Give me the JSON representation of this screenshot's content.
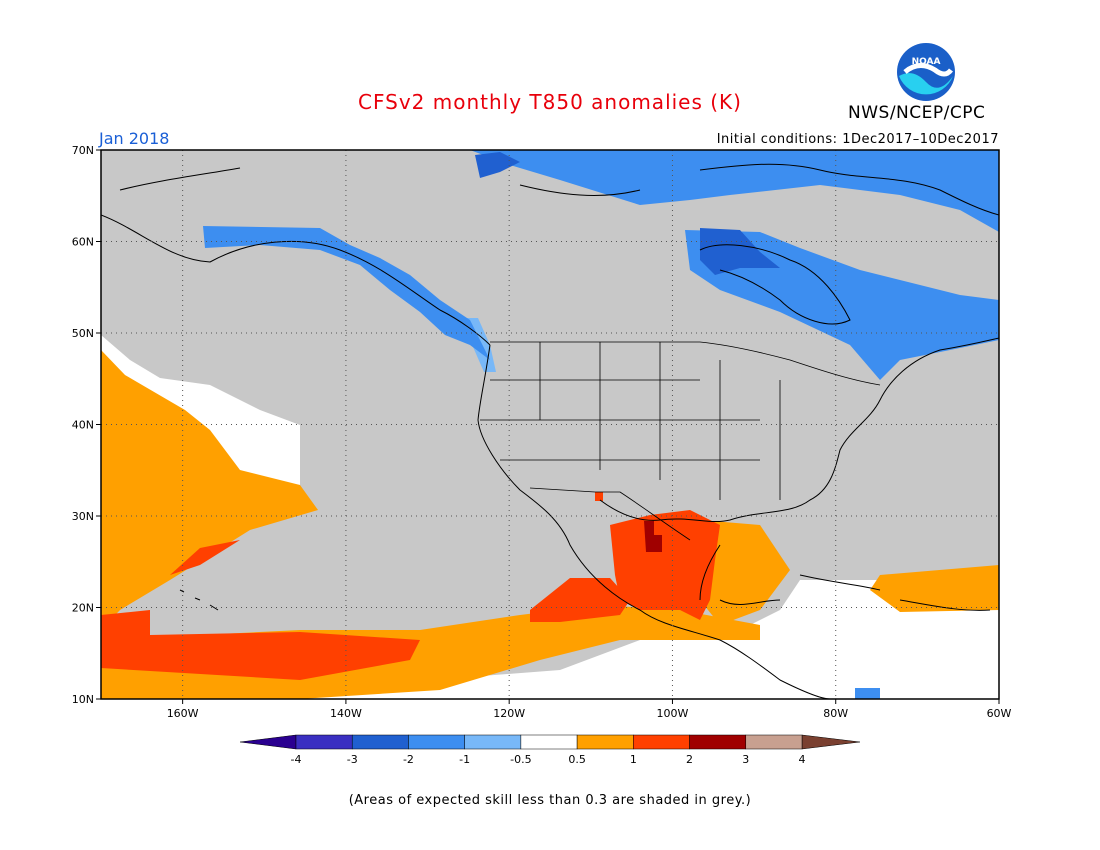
{
  "title": "CFSv2 monthly T850 anomalies (K)",
  "agency": "NWS/NCEP/CPC",
  "logo_text": "NOAA",
  "valid_month": "Jan 2018",
  "initial_conditions": "Initial conditions: 1Dec2017–10Dec2017",
  "footnote": "(Areas of expected skill less than 0.3 are shaded in grey.)",
  "map": {
    "lon_range": [
      -170,
      -60
    ],
    "lat_range": [
      10,
      70
    ],
    "lat_ticks": [
      {
        "lat": 70,
        "label": "70N"
      },
      {
        "lat": 60,
        "label": "60N"
      },
      {
        "lat": 50,
        "label": "50N"
      },
      {
        "lat": 40,
        "label": "40N"
      },
      {
        "lat": 30,
        "label": "30N"
      },
      {
        "lat": 20,
        "label": "20N"
      },
      {
        "lat": 10,
        "label": "10N"
      }
    ],
    "lon_ticks": [
      {
        "lon": -160,
        "label": "160W"
      },
      {
        "lon": -140,
        "label": "140W"
      },
      {
        "lon": -120,
        "label": "120W"
      },
      {
        "lon": -100,
        "label": "100W"
      },
      {
        "lon": -80,
        "label": "80W"
      },
      {
        "lon": -60,
        "label": "60W"
      }
    ],
    "low_skill_color": "#c8c8c8"
  },
  "colorbar": {
    "bins": [
      {
        "lo": "-4",
        "hi": "-3",
        "color": "#3a2fc1"
      },
      {
        "lo": "-3",
        "hi": "-2",
        "color": "#2060d0"
      },
      {
        "lo": "-2",
        "hi": "-1",
        "color": "#3d8ef0"
      },
      {
        "lo": "-1",
        "hi": "-0.5",
        "color": "#78b8f8"
      },
      {
        "lo": "-0.5",
        "hi": "0.5",
        "color": "#ffffff"
      },
      {
        "lo": "0.5",
        "hi": "1",
        "color": "#ffa000"
      },
      {
        "lo": "1",
        "hi": "2",
        "color": "#ff4000"
      },
      {
        "lo": "2",
        "hi": "3",
        "color": "#a00000"
      },
      {
        "lo": "3",
        "hi": "4",
        "color": "#c8a090"
      }
    ],
    "under_color": "#2a0090",
    "over_color": "#7a4030",
    "labels": [
      "-4",
      "-3",
      "-2",
      "-1",
      "-0.5",
      "0.5",
      "1",
      "2",
      "3",
      "4"
    ]
  }
}
